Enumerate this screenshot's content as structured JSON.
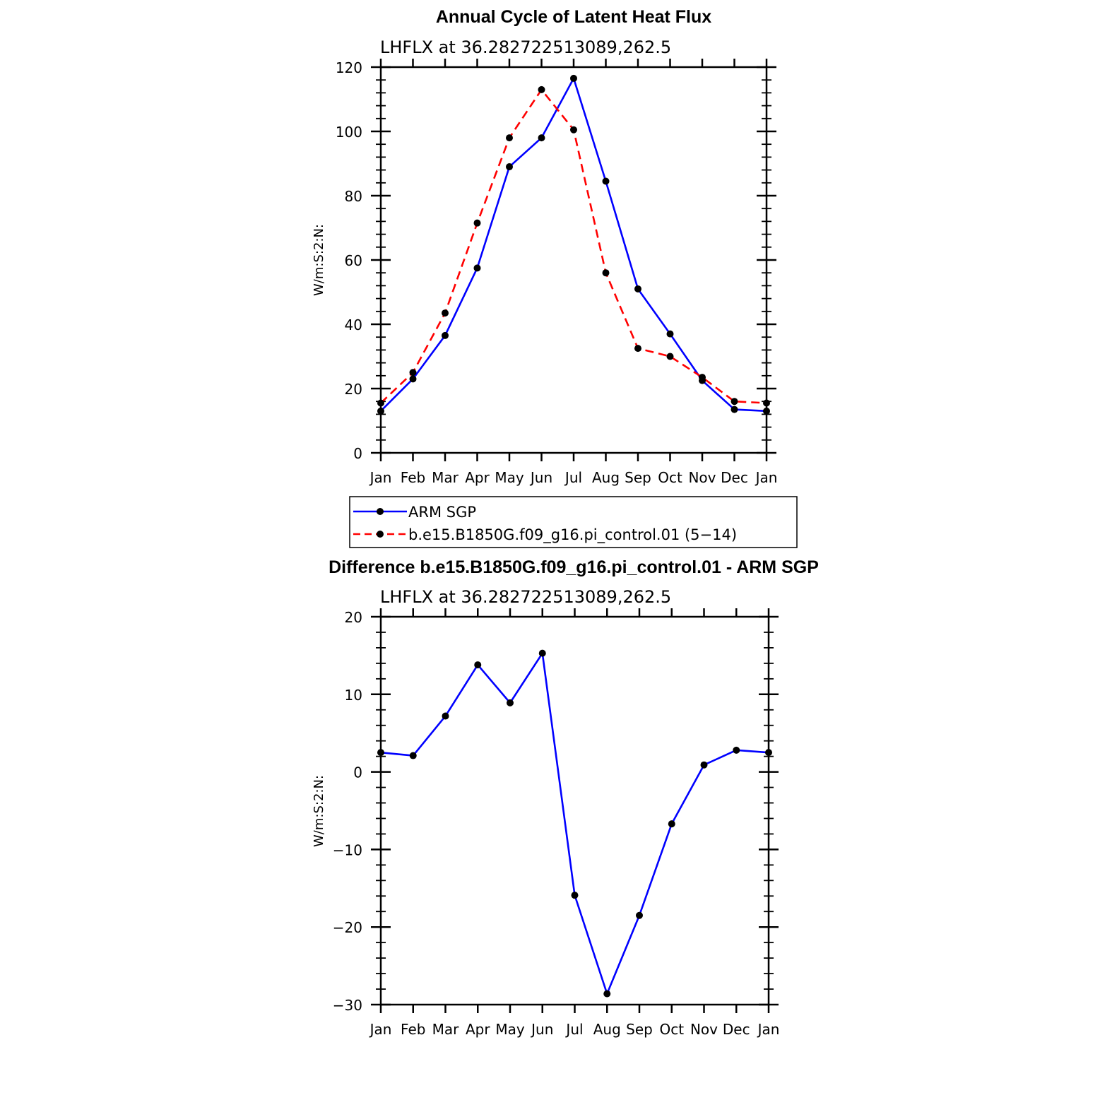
{
  "chart_data": [
    {
      "type": "line",
      "title": "Annual Cycle of Latent Heat Flux",
      "subtitle": "LHFLX at 36.282722513089,262.5",
      "xlabel": "",
      "ylabel": "W/m:S:2:N:",
      "categories": [
        "Jan",
        "Feb",
        "Mar",
        "Apr",
        "May",
        "Jun",
        "Jul",
        "Aug",
        "Sep",
        "Oct",
        "Nov",
        "Dec",
        "Jan"
      ],
      "ylim": [
        0,
        120
      ],
      "yticks": [
        "0",
        "20",
        "40",
        "60",
        "80",
        "100",
        "120"
      ],
      "series": [
        {
          "name": "ARM SGP",
          "color": "#0000ff",
          "dash": "solid",
          "values": [
            13.0,
            23.0,
            36.5,
            57.5,
            89.0,
            98.0,
            116.5,
            84.5,
            51.0,
            37.0,
            22.5,
            13.5,
            13.0
          ]
        },
        {
          "name": "b.e15.B1850G.f09_g16.pi_control.01 (5−14)",
          "color": "#ff0000",
          "dash": "dashed",
          "values": [
            15.5,
            25.0,
            43.5,
            71.5,
            98.0,
            113.0,
            100.5,
            56.0,
            32.5,
            30.0,
            23.5,
            16.0,
            15.5
          ]
        }
      ],
      "legend": {
        "position": "below",
        "entries": [
          "ARM SGP",
          "b.e15.B1850G.f09_g16.pi_control.01 (5−14)"
        ]
      }
    },
    {
      "type": "line",
      "title": "Difference b.e15.B1850G.f09_g16.pi_control.01 - ARM SGP",
      "subtitle": "LHFLX at 36.282722513089,262.5",
      "xlabel": "",
      "ylabel": "W/m:S:2:N:",
      "categories": [
        "Jan",
        "Feb",
        "Mar",
        "Apr",
        "May",
        "Jun",
        "Jul",
        "Aug",
        "Sep",
        "Oct",
        "Nov",
        "Dec",
        "Jan"
      ],
      "ylim": [
        -30,
        20
      ],
      "yticks": [
        "−30",
        "−20",
        "−10",
        "0",
        "10",
        "20"
      ],
      "series": [
        {
          "name": "Difference",
          "color": "#0000ff",
          "dash": "solid",
          "values": [
            2.5,
            2.1,
            7.2,
            13.8,
            8.9,
            15.3,
            -15.9,
            -28.6,
            -18.5,
            -6.7,
            0.9,
            2.8,
            2.5
          ]
        }
      ]
    }
  ]
}
